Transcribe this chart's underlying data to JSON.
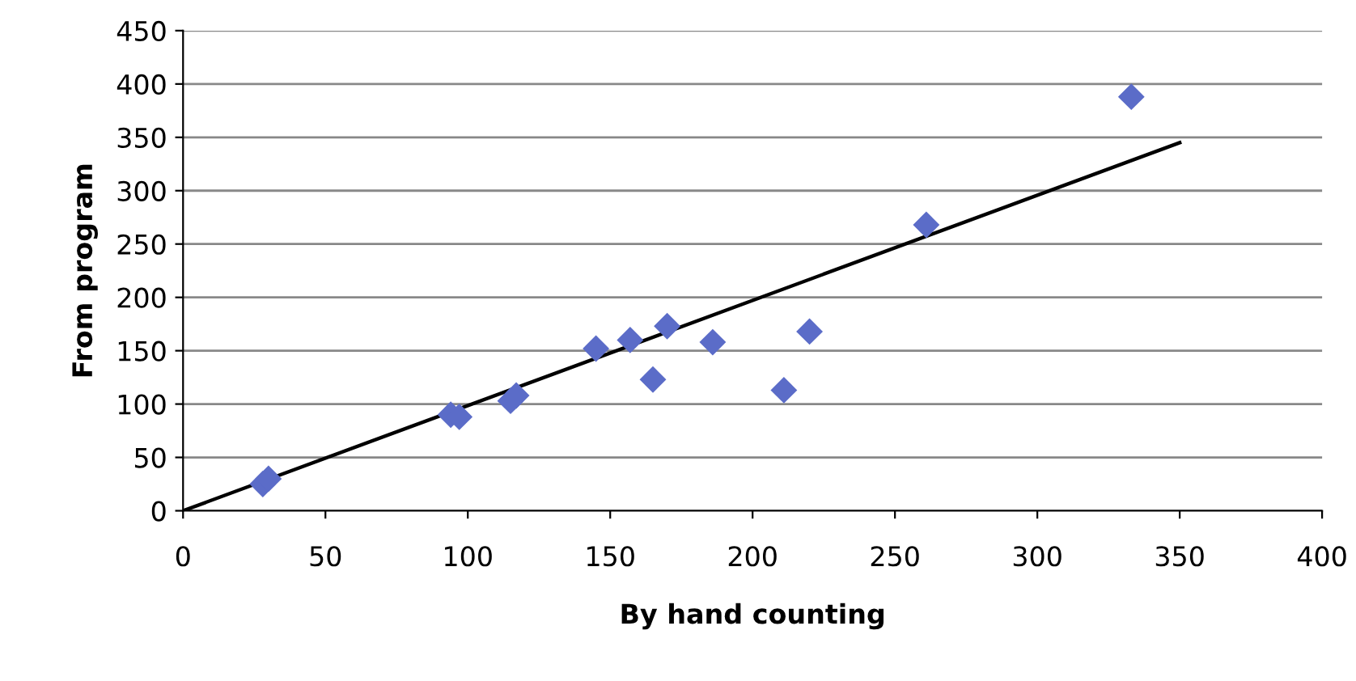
{
  "chart_data": {
    "type": "scatter",
    "xlabel": "By hand counting",
    "ylabel": "From program",
    "xlim": [
      0,
      400
    ],
    "xticks": [
      0,
      50,
      100,
      150,
      200,
      250,
      300,
      350,
      400
    ],
    "ylim": [
      0,
      450
    ],
    "yticks": [
      0,
      50,
      100,
      150,
      200,
      250,
      300,
      350,
      400,
      450
    ],
    "grid": "y",
    "legend": false,
    "series": [
      {
        "color": "#5b6cc8",
        "marker": "diamond",
        "x": [
          28,
          30,
          94,
          97,
          115,
          117,
          145,
          157,
          165,
          170,
          186,
          211,
          220,
          261,
          333
        ],
        "values": [
          25,
          30,
          90,
          88,
          103,
          108,
          152,
          160,
          123,
          173,
          158,
          113,
          168,
          268,
          388
        ]
      },
      {
        "type": "line",
        "color": "#000000",
        "marker": "none",
        "line_style": "solid",
        "x": [
          0,
          350
        ],
        "values": [
          0,
          345
        ]
      }
    ]
  }
}
